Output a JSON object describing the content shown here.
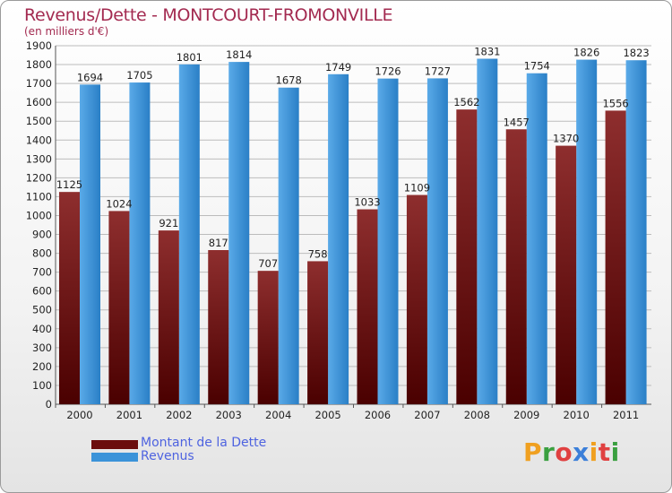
{
  "title": "Revenus/Dette - MONTCOURT-FROMONVILLE",
  "subtitle": "(en milliers d'€)",
  "colors": {
    "dette": "#6b0d0d",
    "revenus": "#3b93d9",
    "title": "#a32a50",
    "legend_text": "#4e63e0"
  },
  "legend": [
    {
      "label": "Montant de la Dette",
      "color": "#6b0d0d"
    },
    {
      "label": "Revenus",
      "color": "#3b93d9"
    }
  ],
  "logo": {
    "text": "Proxiti"
  },
  "chart_data": {
    "type": "bar",
    "title": "Revenus/Dette - MONTCOURT-FROMONVILLE",
    "subtitle": "(en milliers d'€)",
    "categories": [
      "2000",
      "2001",
      "2002",
      "2003",
      "2004",
      "2005",
      "2006",
      "2007",
      "2008",
      "2009",
      "2010",
      "2011"
    ],
    "series": [
      {
        "name": "Montant de la Dette",
        "values": [
          1125,
          1024,
          921,
          817,
          707,
          758,
          1033,
          1109,
          1562,
          1457,
          1370,
          1556
        ]
      },
      {
        "name": "Revenus",
        "values": [
          1694,
          1705,
          1801,
          1814,
          1678,
          1749,
          1726,
          1727,
          1831,
          1754,
          1826,
          1823
        ]
      }
    ],
    "ylim": [
      0,
      1900
    ],
    "yticks": [
      0,
      100,
      200,
      300,
      400,
      500,
      600,
      700,
      800,
      900,
      1000,
      1100,
      1200,
      1300,
      1400,
      1500,
      1600,
      1700,
      1800,
      1900
    ],
    "grid": true,
    "legend_position": "bottom-left"
  }
}
